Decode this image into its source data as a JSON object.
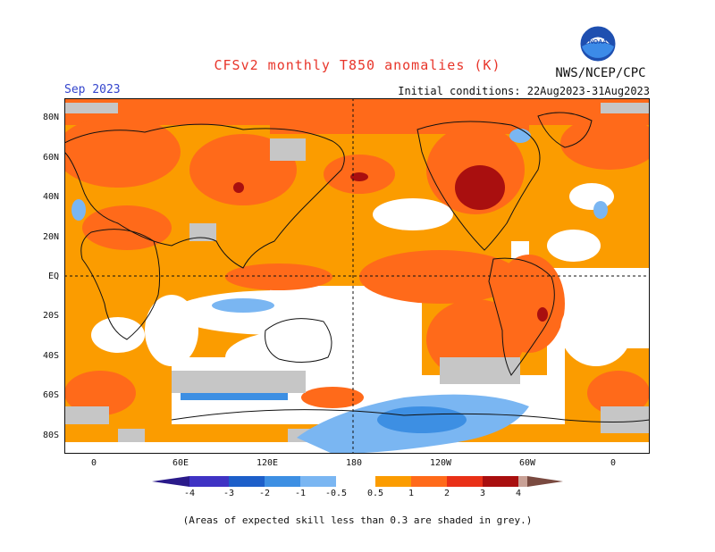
{
  "header": {
    "title": "CFSv2 monthly T850 anomalies (K)",
    "agency": "NWS/NCEP/CPC",
    "logo_text": "NOAA",
    "valid_month": "Sep 2023",
    "initial_conditions": "Initial conditions: 22Aug2023-31Aug2023"
  },
  "axes": {
    "lat_labels": [
      "80N",
      "60N",
      "40N",
      "20N",
      "EQ",
      "20S",
      "40S",
      "60S",
      "80S"
    ],
    "lon_labels": [
      "0",
      "60E",
      "120E",
      "180",
      "120W",
      "60W",
      "0"
    ]
  },
  "colorbar": {
    "labels": [
      "-4",
      "-3",
      "-2",
      "-1",
      "-0.5",
      "0.5",
      "1",
      "2",
      "3",
      "4"
    ],
    "colors": {
      "below_-4": "#2a1a8a",
      "-4_-3": "#3f33c4",
      "-3_-2": "#1d5fc9",
      "-2_-1": "#3d8fe3",
      "-1_-0.5": "#7ab6f2",
      "-0.5_0.5": "#ffffff",
      "0.5_1": "#fb9c00",
      "1_2": "#ff6a1a",
      "2_3": "#e93017",
      "3_4": "#a90f0f",
      "above_4": "#c9a196",
      "extreme": "#7a4a40"
    },
    "skill_mask_color": "#c6c6c6"
  },
  "footer": {
    "note": "(Areas of expected skill less than 0.3 are shaded in grey.)"
  }
}
